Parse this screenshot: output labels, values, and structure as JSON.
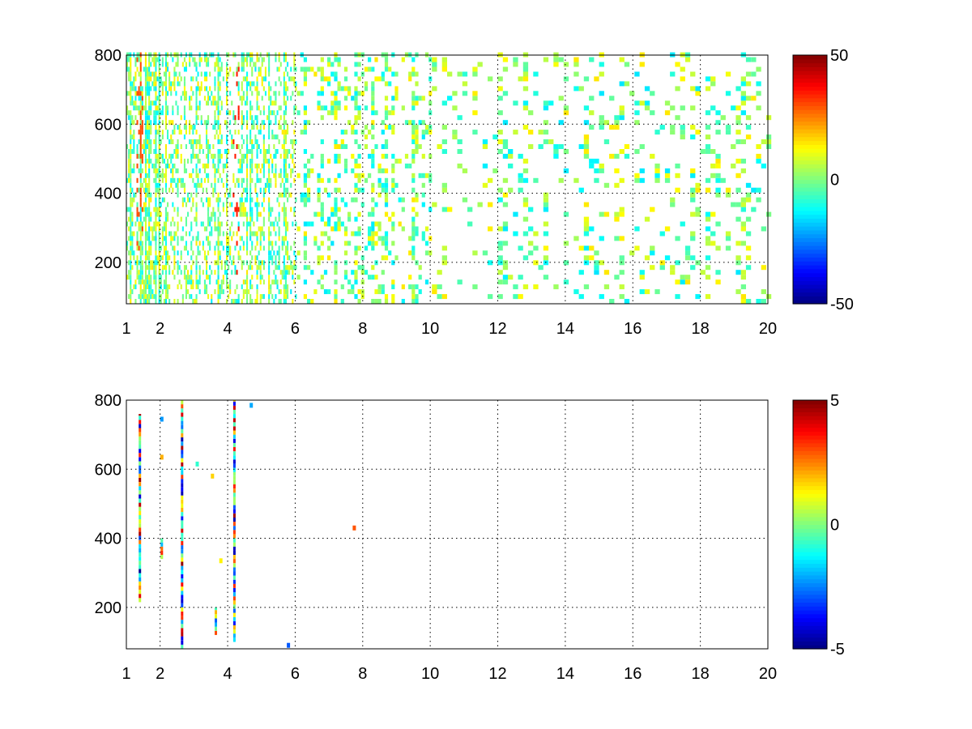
{
  "chart_data": [
    {
      "type": "heatmap",
      "title": "",
      "xlabel": "",
      "ylabel": "",
      "xlim": [
        1,
        20
      ],
      "ylim": [
        80,
        800
      ],
      "x_ticks": [
        1,
        2,
        4,
        6,
        8,
        10,
        12,
        14,
        16,
        18,
        20
      ],
      "x_tick_labels": [
        "1",
        "2",
        "4",
        "6",
        "8",
        "10",
        "12",
        "14",
        "16",
        "18",
        "20"
      ],
      "y_ticks": [
        200,
        400,
        600,
        800
      ],
      "y_tick_labels": [
        "200",
        "400",
        "600",
        "800"
      ],
      "grid": true,
      "colormap": "jet",
      "color_limits": [
        -50,
        50
      ],
      "colorbar_ticks": [
        -50,
        0,
        50
      ],
      "colorbar_tick_labels": [
        "-50",
        "0",
        "50"
      ],
      "description_of_values": "dense scattered small values (mostly near 0, roughly -15 to +15) with sparse outliers up to about +35 near x=1.4 and x=4.2; density decreases toward higher x"
    },
    {
      "type": "heatmap",
      "title": "",
      "xlabel": "",
      "ylabel": "",
      "xlim": [
        1,
        20
      ],
      "ylim": [
        80,
        800
      ],
      "x_ticks": [
        1,
        2,
        4,
        6,
        8,
        10,
        12,
        14,
        16,
        18,
        20
      ],
      "x_tick_labels": [
        "1",
        "2",
        "4",
        "6",
        "8",
        "10",
        "12",
        "14",
        "16",
        "18",
        "20"
      ],
      "y_ticks": [
        200,
        400,
        600,
        800
      ],
      "y_tick_labels": [
        "200",
        "400",
        "600",
        "800"
      ],
      "grid": true,
      "colormap": "jet",
      "color_limits": [
        -5,
        5
      ],
      "colorbar_ticks": [
        -5,
        0,
        5
      ],
      "colorbar_tick_labels": [
        "-5",
        "0",
        "5"
      ],
      "streaks": [
        {
          "x": 1.4,
          "y_range": [
            215,
            760
          ]
        },
        {
          "x": 2.65,
          "y_range": [
            80,
            800
          ]
        },
        {
          "x": 4.2,
          "y_range": [
            100,
            800
          ]
        },
        {
          "x": 2.05,
          "y_range": [
            340,
            400
          ]
        },
        {
          "x": 3.65,
          "y_range": [
            120,
            200
          ]
        }
      ],
      "isolated_points": [
        {
          "x": 2.05,
          "y": 635
        },
        {
          "x": 2.05,
          "y": 745
        },
        {
          "x": 3.1,
          "y": 615
        },
        {
          "x": 3.55,
          "y": 580
        },
        {
          "x": 3.8,
          "y": 335
        },
        {
          "x": 4.7,
          "y": 785
        },
        {
          "x": 5.8,
          "y": 90
        },
        {
          "x": 7.75,
          "y": 430
        }
      ]
    }
  ]
}
